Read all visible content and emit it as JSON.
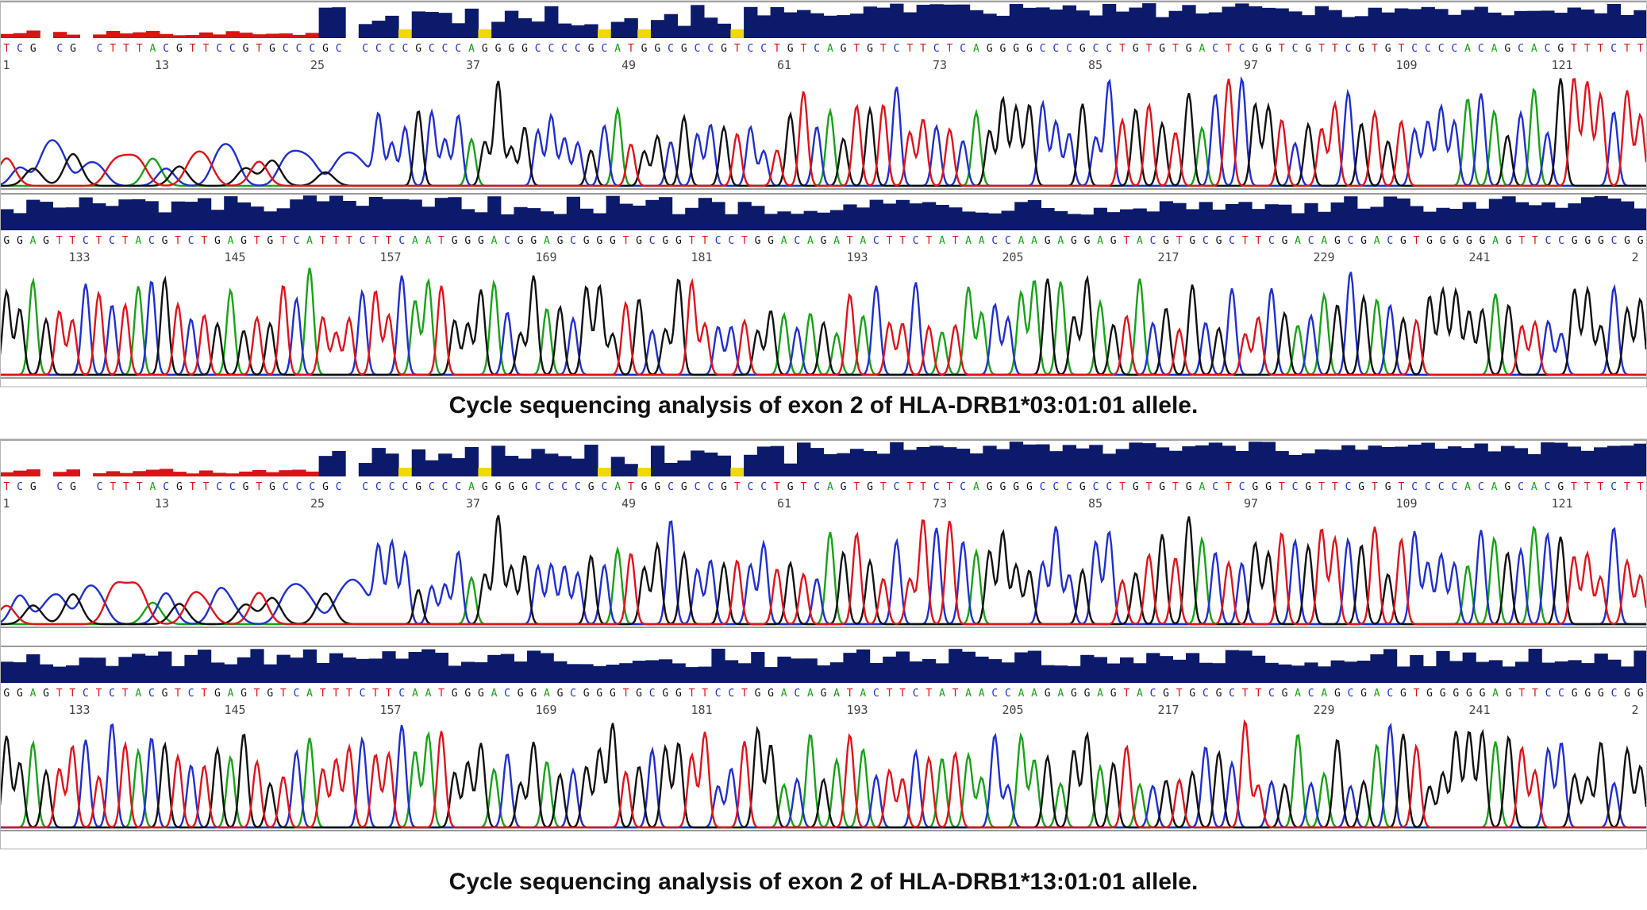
{
  "colors": {
    "A": "#17a317",
    "C": "#1f2fd0",
    "G": "#111111",
    "T": "#e0141a",
    "quality_high": "#0c1a6b",
    "quality_low": "#d81414",
    "quality_mid": "#f0d800"
  },
  "chart_data": [
    {
      "type": "line",
      "title": "Cycle sequencing analysis of exon 2 of HLA-DRB1*03:01:01 allele.",
      "rows": [
        {
          "sequence": "TCG CG CTTTACGTTCCGTGCCCGC CCCCGCCCAGGGGCCCCGCATGGCGCCGTCCTGTCAGTGTCTTCTCAGGGGCCCGCCTGTGTGACTCGGTCGTTCGTGTCCCCACAGCACGTTTCTT",
          "tick_labels": [
            "1",
            "13",
            "25",
            "37",
            "49",
            "61",
            "73",
            "85",
            "97",
            "109",
            "121"
          ]
        },
        {
          "sequence": "GGAGTTCTCTACGTCTGAGTGTCATTTCTTCAATGGGACGGAGCGGGTGCGGTTCCTGGACAGATACTTCTATAACCAAGAGGAGTACGTGCGCTTCGACAGCGACGTGGGGGAGTTCCGGGCGG",
          "tick_labels": [
            "133",
            "145",
            "157",
            "169",
            "181",
            "193",
            "205",
            "217",
            "229",
            "241",
            "2"
          ]
        }
      ]
    },
    {
      "type": "line",
      "title": "Cycle sequencing analysis of exon 2 of HLA-DRB1*13:01:01 allele.",
      "rows": [
        {
          "sequence": "TCG CG CTTTACGTTCCGTGCCCGC CCCCGCCCAGGGGCCCCGCATGGCGCCGTCCTGTCAGTGTCTTCTCAGGGGCCCGCCTGTGTGACTCGGTCGTTCGTGTCCCCACAGCACGTTTCTT",
          "tick_labels": [
            "1",
            "13",
            "25",
            "37",
            "49",
            "61",
            "73",
            "85",
            "97",
            "109",
            "121"
          ]
        },
        {
          "sequence": "GGAGTTCTCTACGTCTGAGTGTCATTTCTTCAATGGGACGGAGCGGGTGCGGTTCCTGGACAGATACTTCTATAACCAAGAGGAGTACGTGCGCTTCGACAGCGACGTGGGGGAGTTCCGGGCGG",
          "tick_labels": [
            "133",
            "145",
            "157",
            "169",
            "181",
            "193",
            "205",
            "217",
            "229",
            "241",
            "2"
          ]
        }
      ]
    }
  ]
}
